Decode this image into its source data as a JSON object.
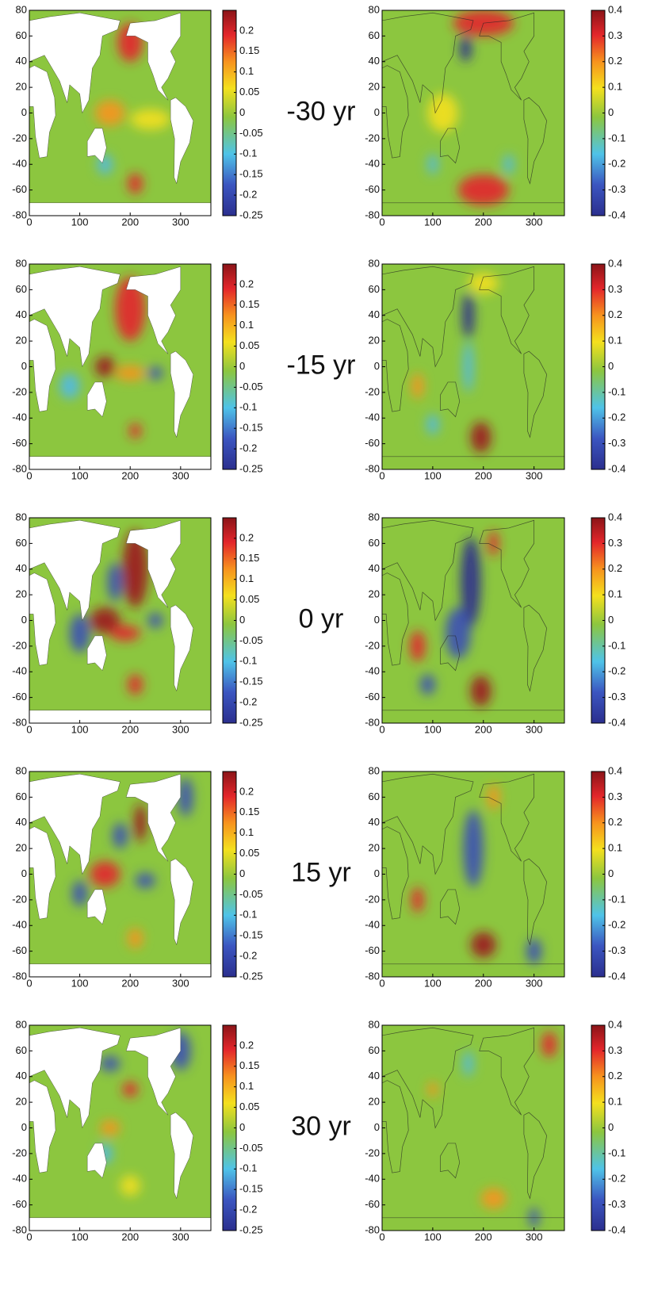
{
  "chart_data": {
    "type": "map",
    "row_labels": [
      "-30 yr",
      "-15 yr",
      "0 yr",
      "15 yr",
      "30 yr"
    ],
    "xlim": [
      0,
      360
    ],
    "ylim": [
      -80,
      80
    ],
    "xticks": [
      0,
      100,
      200,
      300
    ],
    "yticks": [
      -80,
      -60,
      -40,
      -20,
      0,
      20,
      40,
      60,
      80
    ],
    "left_colorbar": {
      "clim": [
        -0.25,
        0.25
      ],
      "ticks": [
        -0.25,
        -0.2,
        -0.15,
        -0.1,
        -0.05,
        0,
        0.05,
        0.1,
        0.15,
        0.2
      ]
    },
    "right_colorbar": {
      "clim": [
        -0.4,
        0.4
      ],
      "ticks": [
        -0.4,
        -0.3,
        -0.2,
        -0.1,
        0,
        0.1,
        0.2,
        0.3,
        0.4
      ]
    }
  }
}
